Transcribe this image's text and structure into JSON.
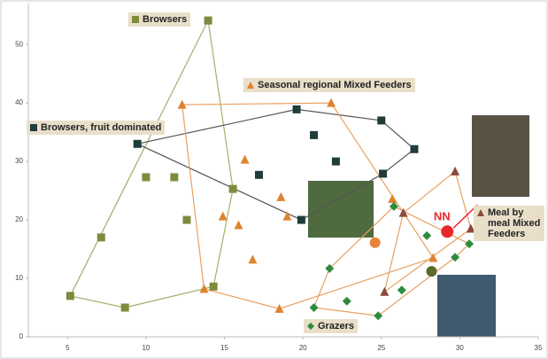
{
  "chart_data": {
    "type": "scatter",
    "xlim": [
      2.5,
      35
    ],
    "ylim": [
      0,
      57
    ],
    "xticks": [
      5,
      10,
      15,
      20,
      25,
      30,
      35
    ],
    "yticks": [
      0,
      10,
      20,
      30,
      40,
      50
    ],
    "series": [
      {
        "name": "Browsers",
        "marker": "square",
        "color": "#7d8b3c",
        "outline": "#a3b06a",
        "x": [
          13.96,
          5.17,
          8.66,
          7.14,
          10.0,
          11.8,
          12.6,
          15.54,
          14.3
        ],
        "values": [
          54.1,
          7.0,
          5.0,
          17.0,
          27.3,
          27.3,
          20.0,
          25.3,
          8.6
        ]
      },
      {
        "name": "Browsers, fruit dominated",
        "marker": "square",
        "color": "#1f3d3a",
        "outline": "#555555",
        "x": [
          9.45,
          19.6,
          20.7,
          22.1,
          17.2,
          19.9,
          25.0,
          27.1,
          25.1
        ],
        "values": [
          33.0,
          38.9,
          34.5,
          30.0,
          27.7,
          20.0,
          37.0,
          32.1,
          27.9
        ]
      },
      {
        "name": "Seasonal regional Mixed Feeders",
        "marker": "triangle",
        "color": "#e0822f",
        "outline": "#e8a060",
        "x": [
          12.3,
          21.8,
          16.3,
          14.9,
          15.9,
          18.6,
          19.0,
          16.8,
          13.7,
          18.5,
          25.7,
          28.3
        ],
        "values": [
          39.7,
          40.0,
          30.3,
          20.6,
          19.1,
          23.9,
          20.6,
          13.2,
          8.2,
          4.8,
          23.6,
          13.5
        ]
      },
      {
        "name": "Meal by meal Mixed Feeders",
        "marker": "triangle",
        "color": "#8b4a3a",
        "outline": "#e8a060",
        "x": [
          29.7,
          26.4,
          25.2,
          30.7
        ],
        "values": [
          28.3,
          21.2,
          7.7,
          18.5
        ]
      },
      {
        "name": "Grazers",
        "marker": "diamond",
        "color": "#2e8b3e",
        "outline": "#e8a060",
        "x": [
          20.7,
          21.7,
          22.8,
          24.8,
          25.8,
          26.3,
          27.9,
          29.7,
          30.6
        ],
        "values": [
          5.0,
          11.7,
          6.1,
          3.6,
          22.3,
          8.0,
          17.3,
          13.6,
          15.9
        ]
      }
    ],
    "highlights": [
      {
        "x": 29.2,
        "y": 18.0,
        "color": "#e8262a",
        "label": "NN"
      },
      {
        "x": 24.6,
        "y": 16.1,
        "color": "#e8823a"
      },
      {
        "x": 28.2,
        "y": 11.2,
        "color": "#5a6b2a"
      }
    ]
  }
}
